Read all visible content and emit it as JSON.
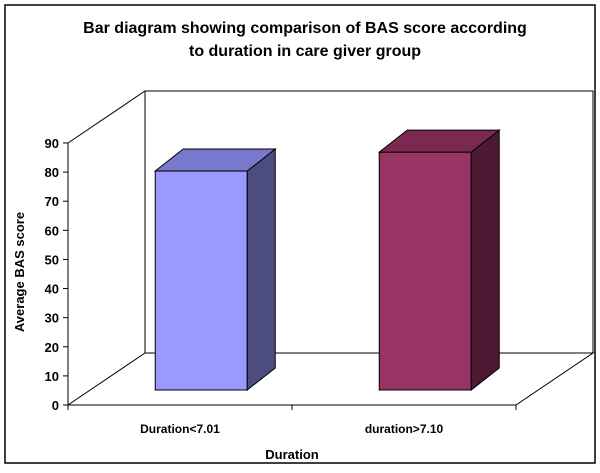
{
  "chart_data": {
    "type": "bar",
    "title_line1": "Bar diagram showing comparison of BAS score according",
    "title_line2": "to duration in care giver group",
    "xlabel": "Duration",
    "ylabel": "Average BAS score",
    "categories": [
      "Duration<7.01",
      "duration>7.10"
    ],
    "values": [
      79,
      85.5
    ],
    "ylim": [
      0,
      90
    ],
    "yticks": [
      0,
      10,
      20,
      30,
      40,
      50,
      60,
      70,
      80,
      90
    ],
    "grid": false,
    "legend": "none",
    "three_d": true,
    "bar_colors": [
      {
        "front": "#9999ff",
        "top": "#7878cc",
        "side": "#4c4c80"
      },
      {
        "front": "#993366",
        "top": "#7a2951",
        "side": "#4d1a33"
      }
    ],
    "frame_color": "#000000"
  }
}
